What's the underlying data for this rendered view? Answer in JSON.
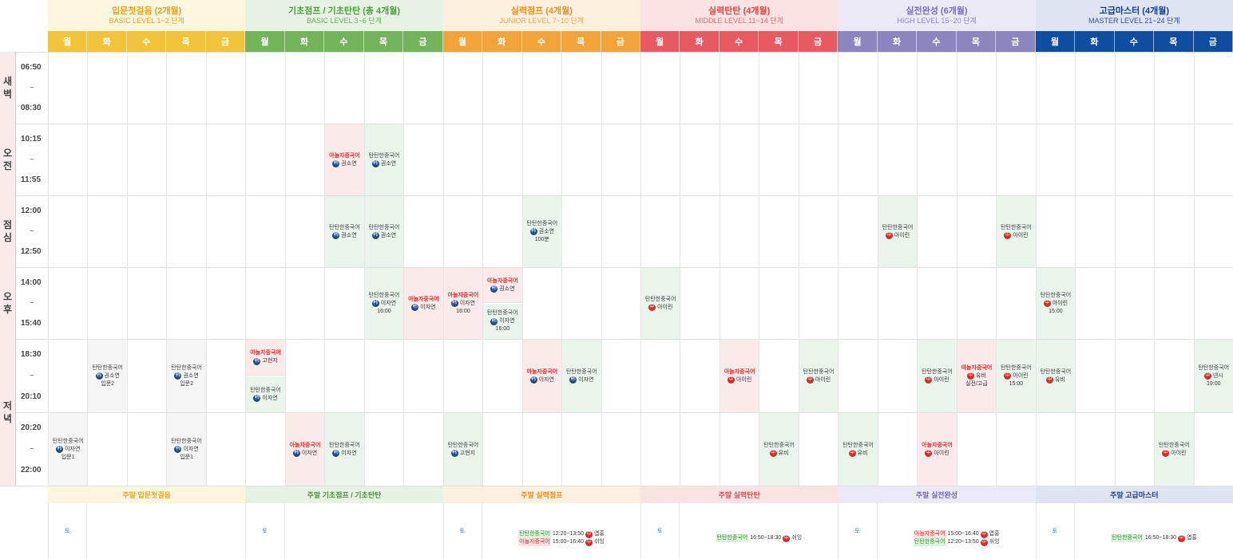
{
  "levels": [
    {
      "title": "입문첫걸음 (2개월)",
      "sub": "BASIC LEVEL 1~2 단계",
      "head_bg": "#fdf6de",
      "title_color": "#e8a21d",
      "sub_color": "#e8a21d",
      "day_bg": "#f3c43a",
      "weekend": "주말 입문첫걸음",
      "weekend_bg": "#fdf6de",
      "weekend_color": "#e8a21d"
    },
    {
      "title": "기초점프 / 기초탄탄 (총 4개월)",
      "sub": "BASIC LEVEL 3~6 단계",
      "head_bg": "#e6f3e3",
      "title_color": "#4f9e3e",
      "sub_color": "#6aab59",
      "day_bg": "#73b35a",
      "weekend": "주말 기초점프 / 기초탄탄",
      "weekend_bg": "#e6f3e3",
      "weekend_color": "#4f8e41"
    },
    {
      "title": "실력점프 (4개월)",
      "sub": "JUNIOR LEVEL 7~10 단계",
      "head_bg": "#fdf0de",
      "title_color": "#ec8e1c",
      "sub_color": "#f0a349",
      "day_bg": "#f2a43b",
      "weekend": "주말 실력점프",
      "weekend_bg": "#fdf0de",
      "weekend_color": "#ec8e1c"
    },
    {
      "title": "실력탄탄 (4개월)",
      "sub": "MIDDLE LEVEL 11~14 단계",
      "head_bg": "#fbe3e3",
      "title_color": "#e04848",
      "sub_color": "#e66a6a",
      "day_bg": "#e85a62",
      "weekend": "주말 실력탄탄",
      "weekend_bg": "#fbe3e3",
      "weekend_color": "#e04848"
    },
    {
      "title": "실전완성 (6개월)",
      "sub": "HIGH LEVEL 15~20 단계",
      "head_bg": "#ebe9f5",
      "title_color": "#7a70b8",
      "sub_color": "#8e86c2",
      "day_bg": "#8c86c0",
      "weekend": "주말 실전완성",
      "weekend_bg": "#ebe9f5",
      "weekend_color": "#6f66aa"
    },
    {
      "title": "고급마스터 (4개월)",
      "sub": "MASTER LEVEL 21~24 단계",
      "head_bg": "#dfe4f3",
      "title_color": "#1a3f86",
      "sub_color": "#2c4f91",
      "day_bg": "#0f4da0",
      "weekend": "주말 고급마스터",
      "weekend_bg": "#dfe4f3",
      "weekend_color": "#1a3f86"
    }
  ],
  "days": [
    "월",
    "화",
    "수",
    "목",
    "금"
  ],
  "groups": [
    {
      "label": "새\n벽"
    },
    {
      "label": "오\n전"
    },
    {
      "label": "점\n심"
    },
    {
      "label": "오\n후"
    },
    {
      "label": "저\n녁"
    }
  ],
  "slots": [
    {
      "start": "06:50",
      "sep": "~",
      "end": "08:30"
    },
    {
      "start": "10:15",
      "sep": "~",
      "end": "11:55"
    },
    {
      "start": "12:00",
      "sep": "~",
      "end": "12:50"
    },
    {
      "start": "14:00",
      "sep": "~",
      "end": "15:40"
    },
    {
      "start": "18:30",
      "sep": "~",
      "end": "20:10"
    },
    {
      "start": "20:20",
      "sep": "~",
      "end": "22:00"
    }
  ],
  "classes": [
    {
      "col": 7,
      "row": 1,
      "bg": "p",
      "name": "아놀자중국어",
      "red": true,
      "badge": "韩",
      "teacher": "권소연"
    },
    {
      "col": 8,
      "row": 1,
      "bg": "g",
      "name": "탄탄한중국어",
      "red": false,
      "badge": "韩",
      "teacher": "권소연"
    },
    {
      "col": 7,
      "row": 2,
      "bg": "g",
      "name": "탄탄한중국어",
      "red": false,
      "badge": "韩",
      "teacher": "권소연"
    },
    {
      "col": 8,
      "row": 2,
      "bg": "g",
      "name": "탄탄한중국어",
      "red": false,
      "badge": "韩",
      "teacher": "권소연"
    },
    {
      "col": 12,
      "row": 2,
      "bg": "g",
      "name": "탄탄한중국어",
      "red": false,
      "badge": "韩",
      "teacher": "권소연",
      "note": "100분"
    },
    {
      "col": 21,
      "row": 2,
      "bg": "g",
      "name": "탄탄한중국어",
      "red": false,
      "badge": "中",
      "teacher": "아이린"
    },
    {
      "col": 24,
      "row": 2,
      "bg": "g",
      "name": "탄탄한중국어",
      "red": false,
      "badge": "中",
      "teacher": "아이린"
    },
    {
      "col": 8,
      "row": 3,
      "bg": "g",
      "name": "탄탄한중국어",
      "red": false,
      "badge": "韩",
      "teacher": "이자연",
      "note": "16:00"
    },
    {
      "col": 9,
      "row": 3,
      "bg": "p",
      "name": "아놀자중국어",
      "red": true,
      "badge": "韩",
      "teacher": "이자연"
    },
    {
      "col": 10,
      "row": 3,
      "bg": "p",
      "name": "아놀자중국어",
      "red": true,
      "badge": "韩",
      "teacher": "이자연",
      "note": "16:00"
    },
    {
      "col": 11,
      "row": 3,
      "half": "top",
      "bg": "p",
      "name": "아놀자중국어",
      "red": true,
      "badge": "韩",
      "teacher": "권소연"
    },
    {
      "col": 11,
      "row": 3,
      "half": "bottom",
      "bg": "g",
      "name": "탄탄한중국어",
      "red": false,
      "badge": "韩",
      "teacher": "이자연",
      "note": "16:00"
    },
    {
      "col": 15,
      "row": 3,
      "bg": "g",
      "name": "탄탄한중국어",
      "red": false,
      "badge": "中",
      "teacher": "아이린"
    },
    {
      "col": 25,
      "row": 3,
      "bg": "g",
      "name": "탄탄한중국어",
      "red": false,
      "badge": "中",
      "teacher": "아이린",
      "note": "15:00"
    },
    {
      "col": 1,
      "row": 4,
      "bg": "w",
      "name": "탄탄한중국어",
      "red": false,
      "badge": "韩",
      "teacher": "권소연",
      "note": "입문2"
    },
    {
      "col": 3,
      "row": 4,
      "bg": "w",
      "name": "탄탄한중국어",
      "red": false,
      "badge": "韩",
      "teacher": "권소연",
      "note": "입문2"
    },
    {
      "col": 5,
      "row": 4,
      "half": "top",
      "bg": "p",
      "name": "아놀자중국어",
      "red": true,
      "badge": "韩",
      "teacher": "고현지"
    },
    {
      "col": 5,
      "row": 4,
      "half": "bottom",
      "bg": "g",
      "name": "탄탄한중국어",
      "red": false,
      "badge": "韩",
      "teacher": "이자연"
    },
    {
      "col": 12,
      "row": 4,
      "bg": "p",
      "name": "아놀자중국어",
      "red": true,
      "badge": "韩",
      "teacher": "이자연"
    },
    {
      "col": 13,
      "row": 4,
      "bg": "g",
      "name": "탄탄한중국어",
      "red": false,
      "badge": "韩",
      "teacher": "이자연"
    },
    {
      "col": 17,
      "row": 4,
      "bg": "p",
      "name": "아놀자중국어",
      "red": true,
      "badge": "中",
      "teacher": "아이린"
    },
    {
      "col": 19,
      "row": 4,
      "bg": "g",
      "name": "탄탄한중국어",
      "red": false,
      "badge": "中",
      "teacher": "아이린"
    },
    {
      "col": 22,
      "row": 4,
      "bg": "g",
      "name": "탄탄한중국어",
      "red": false,
      "badge": "中",
      "teacher": "아이린"
    },
    {
      "col": 23,
      "row": 4,
      "bg": "p",
      "name": "아놀자중국어",
      "red": true,
      "badge": "中",
      "teacher": "유비",
      "note": "실전/고급"
    },
    {
      "col": 24,
      "row": 4,
      "bg": "g",
      "name": "탄탄한중국어",
      "red": false,
      "badge": "中",
      "teacher": "아이린",
      "note": "15:00"
    },
    {
      "col": 25,
      "row": 4,
      "bg": "g",
      "name": "탄탄한중국어",
      "red": false,
      "badge": "中",
      "teacher": "유비"
    },
    {
      "col": 29,
      "row": 4,
      "bg": "g",
      "name": "탄탄한중국어",
      "red": false,
      "badge": "中",
      "teacher": "넨시",
      "note": "19:00"
    },
    {
      "col": 0,
      "row": 5,
      "bg": "w",
      "name": "탄탄한중국어",
      "red": false,
      "badge": "韩",
      "teacher": "이자연",
      "note": "입문1"
    },
    {
      "col": 3,
      "row": 5,
      "bg": "w",
      "name": "탄탄한중국어",
      "red": false,
      "badge": "韩",
      "teacher": "이자연",
      "note": "입문1"
    },
    {
      "col": 6,
      "row": 5,
      "bg": "p",
      "name": "아놀자중국어",
      "red": true,
      "badge": "韩",
      "teacher": "이자연"
    },
    {
      "col": 7,
      "row": 5,
      "bg": "g",
      "name": "탄탄한중국어",
      "red": false,
      "badge": "韩",
      "teacher": "이자연"
    },
    {
      "col": 10,
      "row": 5,
      "bg": "g",
      "name": "탄탄한중국어",
      "red": false,
      "badge": "韩",
      "teacher": "고현지"
    },
    {
      "col": 18,
      "row": 5,
      "bg": "g",
      "name": "탄탄한중국어",
      "red": false,
      "badge": "中",
      "teacher": "유비"
    },
    {
      "col": 20,
      "row": 5,
      "bg": "g",
      "name": "탄탄한중국어",
      "red": false,
      "badge": "中",
      "teacher": "유비"
    },
    {
      "col": 22,
      "row": 5,
      "bg": "p",
      "name": "아놀자중국어",
      "red": true,
      "badge": "中",
      "teacher": "아이린"
    },
    {
      "col": 28,
      "row": 5,
      "bg": "g",
      "name": "탄탄한중국어",
      "red": false,
      "badge": "中",
      "teacher": "아이린"
    }
  ],
  "weekend_day": "토",
  "weekend_slots": [
    [],
    [],
    [
      {
        "name": "탄탄한중국어",
        "color": "g",
        "time": "12:20~13:50",
        "badge": "中",
        "teacher": "엽홍"
      },
      {
        "name": "아놀자중국어",
        "color": "r",
        "time": "15:00~16:40",
        "badge": "中",
        "teacher": "쉬잉"
      }
    ],
    [
      {
        "name": "탄탄한중국어",
        "color": "g",
        "time": "16:50~18:30",
        "badge": "中",
        "teacher": "쉬잉"
      }
    ],
    [
      {
        "name": "아놀자중국어",
        "color": "r",
        "time": "15:00~16:40",
        "badge": "中",
        "teacher": "엽홍"
      },
      {
        "name": "탄탄한중국어",
        "color": "g",
        "time": "12:20~13:50",
        "badge": "中",
        "teacher": "쉬잉"
      }
    ],
    [
      {
        "name": "탄탄한중국어",
        "color": "g",
        "time": "16:50~18:30",
        "badge": "中",
        "teacher": "엽홍"
      }
    ]
  ]
}
